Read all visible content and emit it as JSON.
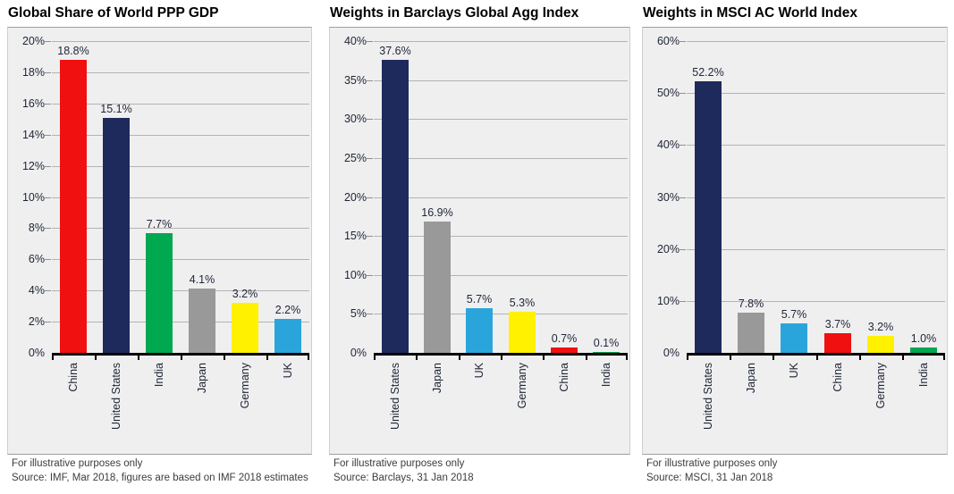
{
  "colors": {
    "navy": "#1F2A5C",
    "red": "#F01010",
    "green": "#00A850",
    "gray": "#999999",
    "yellow": "#FFF100",
    "blue": "#2AA5DC",
    "plot_background": "#EFEFF0",
    "gridline": "#B3B3B3",
    "axis": "#000000"
  },
  "chart_data": [
    {
      "type": "bar",
      "title": "Global Share of World PPP GDP",
      "categories": [
        "China",
        "United States",
        "India",
        "Japan",
        "Germany",
        "UK"
      ],
      "values": [
        18.8,
        15.1,
        7.7,
        4.1,
        3.2,
        2.2
      ],
      "bar_labels": [
        "18.8%",
        "15.1%",
        "7.7%",
        "4.1%",
        "3.2%",
        "2.2%"
      ],
      "bar_colors": [
        "#F01010",
        "#1F2A5C",
        "#00A850",
        "#999999",
        "#FFF100",
        "#2AA5DC"
      ],
      "xlabel": "",
      "ylabel": "",
      "ylim": [
        0,
        20
      ],
      "ytick_step": 2,
      "ytick_labels": [
        "0%",
        "2%",
        "4%",
        "6%",
        "8%",
        "10%",
        "12%",
        "14%",
        "16%",
        "18%",
        "20%"
      ],
      "grid": true,
      "legend": false,
      "footnote": "For illustrative purposes only",
      "source": "Source: IMF, Mar 2018, figures are based on IMF 2018 estimates"
    },
    {
      "type": "bar",
      "title": "Weights in Barclays Global Agg Index",
      "categories": [
        "United States",
        "Japan",
        "UK",
        "Germany",
        "China",
        "India"
      ],
      "values": [
        37.6,
        16.9,
        5.7,
        5.3,
        0.7,
        0.1
      ],
      "bar_labels": [
        "37.6%",
        "16.9%",
        "5.7%",
        "5.3%",
        "0.7%",
        "0.1%"
      ],
      "bar_colors": [
        "#1F2A5C",
        "#999999",
        "#2AA5DC",
        "#FFF100",
        "#F01010",
        "#00A850"
      ],
      "xlabel": "",
      "ylabel": "",
      "ylim": [
        0,
        40
      ],
      "ytick_step": 5,
      "ytick_labels": [
        "0%",
        "5%",
        "10%",
        "15%",
        "20%",
        "25%",
        "30%",
        "35%",
        "40%"
      ],
      "grid": true,
      "legend": false,
      "footnote": "For illustrative purposes only",
      "source": "Source: Barclays, 31 Jan 2018"
    },
    {
      "type": "bar",
      "title": "Weights in MSCI AC World Index",
      "categories": [
        "United States",
        "Japan",
        "UK",
        "China",
        "Germany",
        "India"
      ],
      "values": [
        52.2,
        7.8,
        5.7,
        3.7,
        3.2,
        1.0
      ],
      "bar_labels": [
        "52.2%",
        "7.8%",
        "5.7%",
        "3.7%",
        "3.2%",
        "1.0%"
      ],
      "bar_colors": [
        "#1F2A5C",
        "#999999",
        "#2AA5DC",
        "#F01010",
        "#FFF100",
        "#00A850"
      ],
      "xlabel": "",
      "ylabel": "",
      "ylim": [
        0,
        60
      ],
      "ytick_step": 10,
      "ytick_labels": [
        "0%",
        "10%",
        "20%",
        "30%",
        "40%",
        "50%",
        "60%"
      ],
      "grid": true,
      "legend": false,
      "footnote": "For illustrative purposes only",
      "source": "Source: MSCI, 31 Jan 2018"
    }
  ],
  "layout_meta": {
    "panel_count": 3
  }
}
